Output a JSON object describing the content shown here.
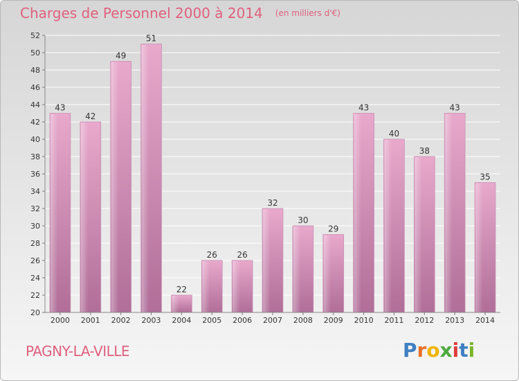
{
  "header": {
    "title": "Charges de Personnel 2000 à 2014",
    "unit": "(en milliers d'€)"
  },
  "footer": {
    "commune": "PAGNY-LA-VILLE",
    "logo_letters": [
      "P",
      "r",
      "o",
      "x",
      "i",
      "t",
      "i"
    ],
    "logo_colors": [
      "#3f7fc2",
      "#e8702a",
      "#f0b400",
      "#4caa3c",
      "#e03c3c",
      "#3f7fc2",
      "#7ab42c"
    ]
  },
  "colors": {
    "accent": "#e0607e",
    "bar_top": "#e8a9cc",
    "bar_bottom": "#b06e98"
  },
  "chart_data": {
    "type": "bar",
    "title": "Charges de Personnel 2000 à 2014",
    "subtitle": "(en milliers d'€)",
    "categories": [
      "2000",
      "2001",
      "2002",
      "2003",
      "2004",
      "2005",
      "2006",
      "2007",
      "2008",
      "2009",
      "2010",
      "2011",
      "2012",
      "2013",
      "2014"
    ],
    "values": [
      43,
      42,
      49,
      51,
      22,
      26,
      26,
      32,
      30,
      29,
      43,
      40,
      38,
      43,
      35
    ],
    "ylim": [
      20,
      52
    ],
    "yticks": [
      20,
      22,
      24,
      26,
      28,
      30,
      32,
      34,
      36,
      38,
      40,
      42,
      44,
      46,
      48,
      50,
      52
    ],
    "grid": true,
    "xlabel": "",
    "ylabel": ""
  }
}
